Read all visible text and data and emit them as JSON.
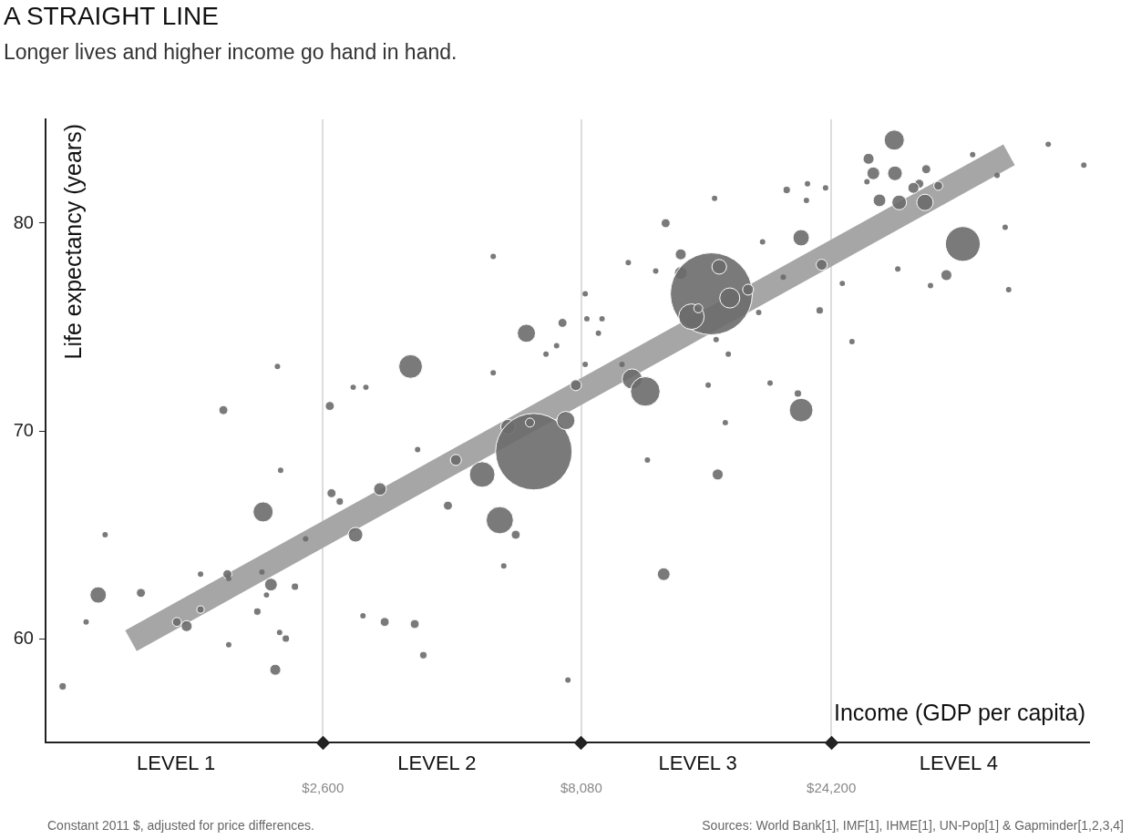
{
  "chart_data": {
    "type": "bubble",
    "title": "A STRAIGHT LINE",
    "subtitle": "Longer lives and higher income go hand in hand.",
    "xlabel": "Income (GDP per capita)",
    "ylabel": "Life expectancy (years)",
    "log": "x",
    "grid": "x",
    "legend": false,
    "xlim": [
      770,
      75000
    ],
    "xticks": [
      {
        "value": 2600,
        "label": "$2,600"
      },
      {
        "value": 8080,
        "label": "$8,080"
      },
      {
        "value": 24200,
        "label": "$24,200"
      }
    ],
    "ylim": [
      55,
      85
    ],
    "yticks": [
      60,
      70,
      80
    ],
    "series": [
      {
        "type": "line",
        "color": "#a6a6a6",
        "x": [
          1120,
          52800
        ],
        "values": [
          59.9,
          83.3
        ]
      },
      {
        "color": "#6b6b6b",
        "x": [
          830,
          920,
          970,
          1000,
          1170,
          1370,
          1430,
          1520,
          1520,
          1680,
          1710,
          1720,
          1720,
          1950,
          1990,
          2000,
          2070,
          2110,
          2150,
          2160,
          2210,
          2300,
          2410,
          2680,
          2700,
          2800,
          3000,
          3100,
          3340,
          3410,
          3820,
          3890,
          3940,
          4040,
          4500,
          4660,
          5230,
          5650,
          5860,
          6060,
          6560,
          6450,
          6350,
          7440,
          7550,
          7890,
          10100,
          10700,
          11600,
          11700,
          12500,
          12500,
          14300,
          13100,
          13500,
          14800,
          15500,
          16800,
          14700,
          21200,
          20900,
          21200,
          23200,
          23000,
          31900,
          28500,
          29100,
          32000,
          29900,
          32600,
          36500,
          35600,
          34700,
          36700,
          38700,
          43100,
          40100,
          45000,
          19900,
          21700,
          21800,
          17900,
          14600,
          17600,
          62700,
          52700,
          50100,
          32400,
          18500,
          9660,
          8710,
          9930,
          11200,
          10800,
          8220,
          2970,
          3140,
          5490,
          6920,
          7250,
          8220,
          8280,
          8850,
          14500,
          15400,
          15200,
          14100,
          19600,
          25400,
          37400,
          51900,
          23600,
          28300,
          2130,
          2030,
          5750,
          7620,
          5490,
          26500,
          73300
        ],
        "values": [
          57.7,
          60.8,
          62.1,
          65.0,
          62.2,
          60.8,
          60.6,
          61.4,
          63.1,
          71.0,
          63.1,
          62.9,
          59.7,
          61.3,
          63.2,
          66.1,
          62.6,
          58.5,
          60.3,
          68.1,
          60.0,
          62.5,
          64.8,
          71.2,
          67.0,
          66.6,
          65.0,
          61.1,
          67.2,
          60.8,
          73.1,
          60.7,
          69.1,
          59.2,
          66.4,
          68.6,
          67.9,
          65.7,
          70.2,
          65.0,
          69.0,
          70.4,
          74.7,
          75.2,
          70.5,
          72.2,
          72.5,
          71.9,
          63.1,
          80.0,
          78.5,
          77.6,
          76.6,
          75.5,
          75.9,
          77.9,
          76.4,
          76.8,
          67.9,
          71.0,
          71.8,
          79.3,
          78.0,
          75.8,
          84.0,
          83.1,
          82.4,
          82.4,
          81.1,
          81.0,
          81.0,
          81.9,
          81.7,
          82.6,
          81.8,
          79.0,
          77.5,
          83.3,
          81.6,
          81.1,
          81.9,
          79.1,
          74.4,
          75.7,
          83.8,
          76.8,
          82.3,
          77.8,
          72.3,
          73.2,
          74.7,
          78.1,
          77.7,
          68.6,
          73.2,
          72.1,
          72.1,
          72.8,
          73.7,
          74.1,
          76.6,
          75.4,
          75.4,
          81.2,
          73.7,
          70.4,
          72.2,
          77.4,
          77.1,
          77.0,
          79.8,
          81.7,
          82.0,
          73.1,
          62.1,
          63.5,
          58.0,
          78.4,
          74.3,
          82.8
        ],
        "sizes": [
          0.008,
          0.0044,
          0.04,
          0.0044,
          0.012,
          0.012,
          0.018,
          0.008,
          0.0044,
          0.012,
          0.012,
          0.0044,
          0.0044,
          0.008,
          0.0044,
          0.06,
          0.024,
          0.018,
          0.0044,
          0.0044,
          0.008,
          0.008,
          0.0044,
          0.012,
          0.012,
          0.008,
          0.032,
          0.0044,
          0.024,
          0.012,
          0.083,
          0.012,
          0.0044,
          0.008,
          0.012,
          0.018,
          0.097,
          0.11,
          0.032,
          0.012,
          0.87,
          0.012,
          0.049,
          0.012,
          0.049,
          0.018,
          0.06,
          0.13,
          0.024,
          0.012,
          0.018,
          0.024,
          1,
          0.097,
          0.012,
          0.032,
          0.06,
          0.018,
          0.018,
          0.083,
          0.008,
          0.04,
          0.018,
          0.008,
          0.06,
          0.018,
          0.024,
          0.032,
          0.024,
          0.032,
          0.04,
          0.012,
          0.018,
          0.012,
          0.012,
          0.18,
          0.018,
          0.0044,
          0.008,
          0.0044,
          0.0044,
          0.0044,
          0.0044,
          0.0044,
          0.0044,
          0.0044,
          0.0044,
          0.0044,
          0.0044,
          0.0044,
          0.0044,
          0.0044,
          0.0044,
          0.0044,
          0.0044,
          0.0044,
          0.0044,
          0.0044,
          0.0044,
          0.0044,
          0.0044,
          0.0044,
          0.0044,
          0.0044,
          0.0044,
          0.0044,
          0.0044,
          0.0044,
          0.0044,
          0.0044,
          0.0044,
          0.0044,
          0.0044,
          0.0044,
          0.0044,
          0.0044,
          0.0044,
          0.0044,
          0.0044,
          0.0044
        ]
      }
    ],
    "annotations": [
      "LEVEL 1",
      "LEVEL 2",
      "LEVEL 3",
      "LEVEL 4",
      "Constant 2011 $, adjusted for price differences.",
      "Sources: World Bank[1], IMF[1], IHME[1], UN-Pop[1] & Gapminder[1,2,3,4]"
    ]
  }
}
